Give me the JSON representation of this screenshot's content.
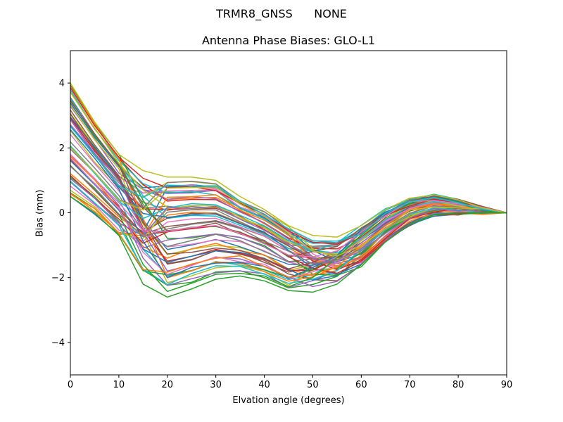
{
  "chart_data": {
    "type": "line",
    "suptitle": "TRMR8_GNSS      NONE",
    "title": "Antenna Phase Biases: GLO-L1",
    "xlabel": "Elvation angle (degrees)",
    "ylabel": "Bias (mm)",
    "xlim": [
      0,
      90
    ],
    "ylim": [
      -5,
      5
    ],
    "xticks": [
      0,
      10,
      20,
      30,
      40,
      50,
      60,
      70,
      80,
      90
    ],
    "yticks": [
      -4,
      -2,
      0,
      2,
      4
    ],
    "ytick_labels": [
      "−4",
      "−2",
      "0",
      "2",
      "4"
    ],
    "grid": false,
    "legend": null,
    "x": [
      0,
      5,
      10,
      15,
      20,
      25,
      30,
      35,
      40,
      45,
      50,
      55,
      60,
      65,
      70,
      75,
      80,
      85,
      90
    ],
    "colors": [
      "#1f77b4",
      "#ff7f0e",
      "#2ca02c",
      "#d62728",
      "#9467bd",
      "#8c564b",
      "#e377c2",
      "#7f7f7f",
      "#bcbd22",
      "#17becf"
    ],
    "upper_envelope": [
      4.0,
      2.8,
      1.8,
      1.3,
      1.1,
      1.1,
      1.0,
      0.5,
      0.1,
      -0.4,
      -0.7,
      -0.75,
      -0.4,
      0.1,
      0.45,
      0.55,
      0.4,
      0.15,
      0.0
    ],
    "lower_envelope": [
      0.5,
      0.0,
      -0.7,
      -2.2,
      -2.6,
      -2.35,
      -2.05,
      -1.95,
      -2.1,
      -2.4,
      -2.45,
      -2.2,
      -1.6,
      -0.9,
      -0.35,
      -0.05,
      0.0,
      0.0,
      0.0
    ],
    "series_count": 60
  }
}
